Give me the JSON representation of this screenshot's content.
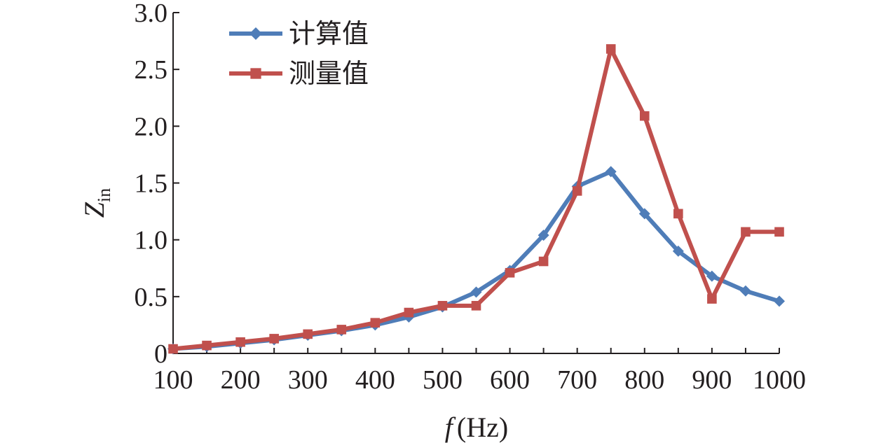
{
  "chart_data": {
    "type": "line",
    "title": "",
    "xlabel": "f (Hz)",
    "xlabel_var": "f",
    "xlabel_unit": "(Hz)",
    "ylabel": "Zin",
    "ylabel_var": "Z",
    "ylabel_sub": "in",
    "x": [
      100,
      150,
      200,
      250,
      300,
      350,
      400,
      450,
      500,
      550,
      600,
      650,
      700,
      750,
      800,
      850,
      900,
      950,
      1000
    ],
    "xlim": [
      100,
      1000
    ],
    "ylim": [
      0,
      3.0
    ],
    "x_ticks": [
      100,
      200,
      300,
      400,
      500,
      600,
      700,
      800,
      900,
      1000
    ],
    "x_tick_labels": [
      "100",
      "200",
      "300",
      "400",
      "500",
      "600",
      "700",
      "800",
      "900",
      "1000"
    ],
    "y_ticks": [
      0,
      0.5,
      1.0,
      1.5,
      2.0,
      2.5,
      3.0
    ],
    "y_tick_labels": [
      "0",
      "0.5",
      "1.0",
      "1.5",
      "2.0",
      "2.5",
      "3.0"
    ],
    "grid": false,
    "legend_position": "top-left",
    "series": [
      {
        "name": "计算值",
        "marker": "diamond",
        "color": "#4f7db8",
        "values": [
          0.04,
          0.06,
          0.09,
          0.12,
          0.16,
          0.2,
          0.25,
          0.32,
          0.41,
          0.54,
          0.73,
          1.04,
          1.47,
          1.6,
          1.23,
          0.9,
          0.68,
          0.55,
          0.46
        ]
      },
      {
        "name": "测量值",
        "marker": "square",
        "color": "#c0504d",
        "values": [
          0.04,
          0.07,
          0.1,
          0.13,
          0.17,
          0.21,
          0.27,
          0.36,
          0.42,
          0.42,
          0.71,
          0.81,
          1.43,
          2.68,
          2.09,
          1.23,
          0.48,
          1.07,
          1.07
        ]
      }
    ]
  }
}
